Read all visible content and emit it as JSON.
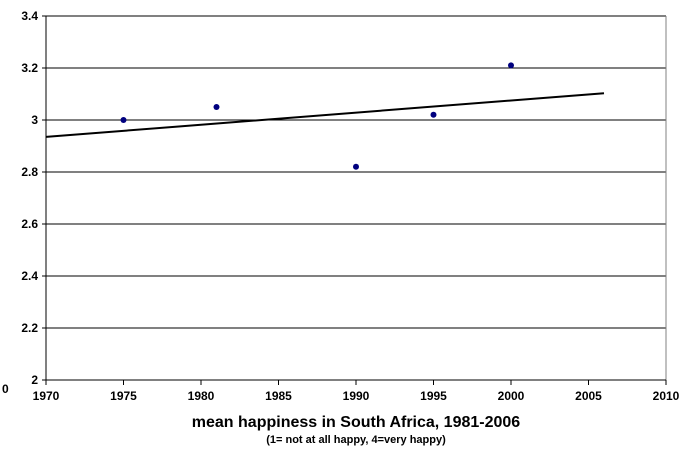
{
  "chart_data": {
    "type": "scatter",
    "title": "",
    "xlabel": "mean happiness in South Africa, 1981-2006",
    "xlabel_note": "(1= not at all happy,  4=very happy)",
    "ylabel": "",
    "corner_label": "0",
    "xlim": [
      1970,
      2010
    ],
    "ylim": [
      2,
      3.4
    ],
    "x_ticks": [
      1970,
      1975,
      1980,
      1985,
      1990,
      1995,
      2000,
      2005,
      2010
    ],
    "y_ticks": [
      2,
      2.2,
      2.4,
      2.6,
      2.8,
      3,
      3.2,
      3.4
    ],
    "grid": "horizontal",
    "legend": "none",
    "series": [
      {
        "points": [
          {
            "x": 1975,
            "y": 3.0
          },
          {
            "x": 1981,
            "y": 3.05
          },
          {
            "x": 1990,
            "y": 2.82
          },
          {
            "x": 1995,
            "y": 3.02
          },
          {
            "x": 2000,
            "y": 3.21
          }
        ],
        "marker_color": "#00007f"
      }
    ],
    "trendline": {
      "type": "linear",
      "x_range": [
        1970,
        2006
      ],
      "y_start": 2.935,
      "y_end": 3.103,
      "color": "#000000"
    }
  }
}
